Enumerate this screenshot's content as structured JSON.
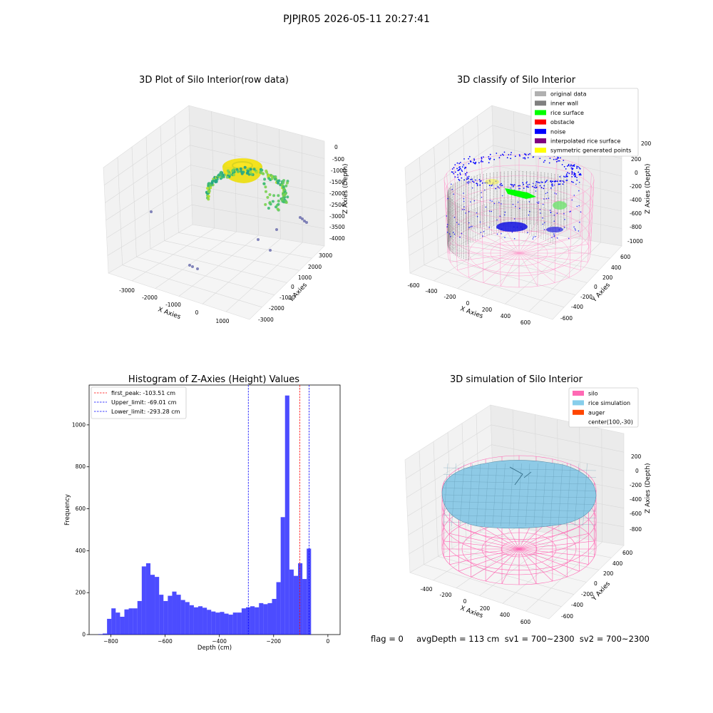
{
  "figure": {
    "suptitle": "PJPJR05 2026-05-11 20:27:41",
    "status_line": "flag = 0     avgDepth = 113 cm  sv1 = 700~2300  sv2 = 700~2300"
  },
  "chart_data": [
    {
      "type": "scatter",
      "projection": "3d",
      "title": "3D Plot of Silo Interior(row data)",
      "xlabel": "X Axies",
      "ylabel": "Y Axies",
      "zlabel": "Z Axies (Depth)",
      "x_ticks": [
        "-3000",
        "-2000",
        "-1000",
        "0",
        "1000"
      ],
      "y_ticks": [
        "3000",
        "2000",
        "1000",
        "0",
        "-1000",
        "-2000",
        "-3000"
      ],
      "z_ticks": [
        "0",
        "-500",
        "-1000",
        "-1500",
        "-2000",
        "-2500",
        "-3000",
        "-3500",
        "-4000"
      ],
      "colormap": "viridis",
      "grid": true
    },
    {
      "type": "scatter",
      "projection": "3d",
      "title": "3D classify of Silo Interior",
      "xlabel": "X Axies",
      "ylabel": "Y Axies",
      "zlabel": "Z Axies (Depth)",
      "x_ticks": [
        "-600",
        "-400",
        "-200",
        "0",
        "200",
        "400",
        "600"
      ],
      "y_ticks": [
        "600",
        "400",
        "200",
        "0",
        "-200",
        "-400",
        "-600"
      ],
      "z_ticks": [
        "200",
        "0",
        "-200",
        "-400",
        "-600",
        "-800",
        "-1000"
      ],
      "z_ticks_partial": [
        "200"
      ],
      "legend": {
        "position": "upper right",
        "entries": [
          {
            "label": "original data",
            "color": "#b0b0b0"
          },
          {
            "label": "inner wall",
            "color": "#808080"
          },
          {
            "label": "rice surface",
            "color": "#00ff00"
          },
          {
            "label": "obstacle",
            "color": "#ff0000"
          },
          {
            "label": "noise",
            "color": "#0000ff"
          },
          {
            "label": "interpolated rice surface",
            "color": "#800080"
          },
          {
            "label": "symmetric generated points",
            "color": "#ffff00"
          }
        ]
      },
      "grid": true
    },
    {
      "type": "bar",
      "subtype": "histogram",
      "title": "Histogram of Z-Axies (Height) Values",
      "xlabel": "Depth (cm)",
      "ylabel": "Frequency",
      "xlim": [
        -880,
        45
      ],
      "ylim": [
        0,
        1190
      ],
      "x_ticks": [
        -800,
        -600,
        -400,
        -200,
        0
      ],
      "y_ticks": [
        0,
        200,
        400,
        600,
        800,
        1000
      ],
      "bin_width": 16,
      "bin_start": -846,
      "values": [
        2,
        5,
        75,
        125,
        105,
        85,
        120,
        125,
        125,
        160,
        325,
        340,
        285,
        275,
        190,
        160,
        185,
        205,
        190,
        165,
        155,
        140,
        130,
        135,
        128,
        118,
        110,
        105,
        108,
        100,
        95,
        105,
        105,
        125,
        130,
        135,
        130,
        150,
        145,
        150,
        170,
        250,
        560,
        1140,
        310,
        280,
        340,
        265,
        410
      ],
      "bar_color": "#0000ff",
      "bar_alpha": 0.7,
      "vlines": [
        {
          "label": "first_peak: -103.51 cm",
          "x": -103.51,
          "color": "#ff0000"
        },
        {
          "label": "Upper_limit: -69.01 cm",
          "x": -69.01,
          "color": "#0000ff"
        },
        {
          "label": "Lower_limit: -293.28 cm",
          "x": -293.28,
          "color": "#0000ff"
        }
      ],
      "legend": {
        "position": "upper left"
      }
    },
    {
      "type": "surface",
      "projection": "3d",
      "title": "3D simulation of Silo Interior",
      "xlabel": "X Axies",
      "ylabel": "Y Axies",
      "zlabel": "Z Axies (Depth)",
      "x_ticks": [
        "-400",
        "-200",
        "0",
        "200",
        "400",
        "600"
      ],
      "y_ticks": [
        "600",
        "400",
        "200",
        "0",
        "-200",
        "-400",
        "-600"
      ],
      "z_ticks": [
        "200",
        "0",
        "-200",
        "-400",
        "-600",
        "-800"
      ],
      "legend": {
        "position": "upper right",
        "entries": [
          {
            "label": "silo",
            "color": "#ff69b4"
          },
          {
            "label": "rice simulation",
            "color": "#87ceeb"
          },
          {
            "label": "auger",
            "color": "#ff4500"
          },
          {
            "label": "center(100,-30)",
            "color": ""
          }
        ]
      },
      "grid": true
    }
  ]
}
